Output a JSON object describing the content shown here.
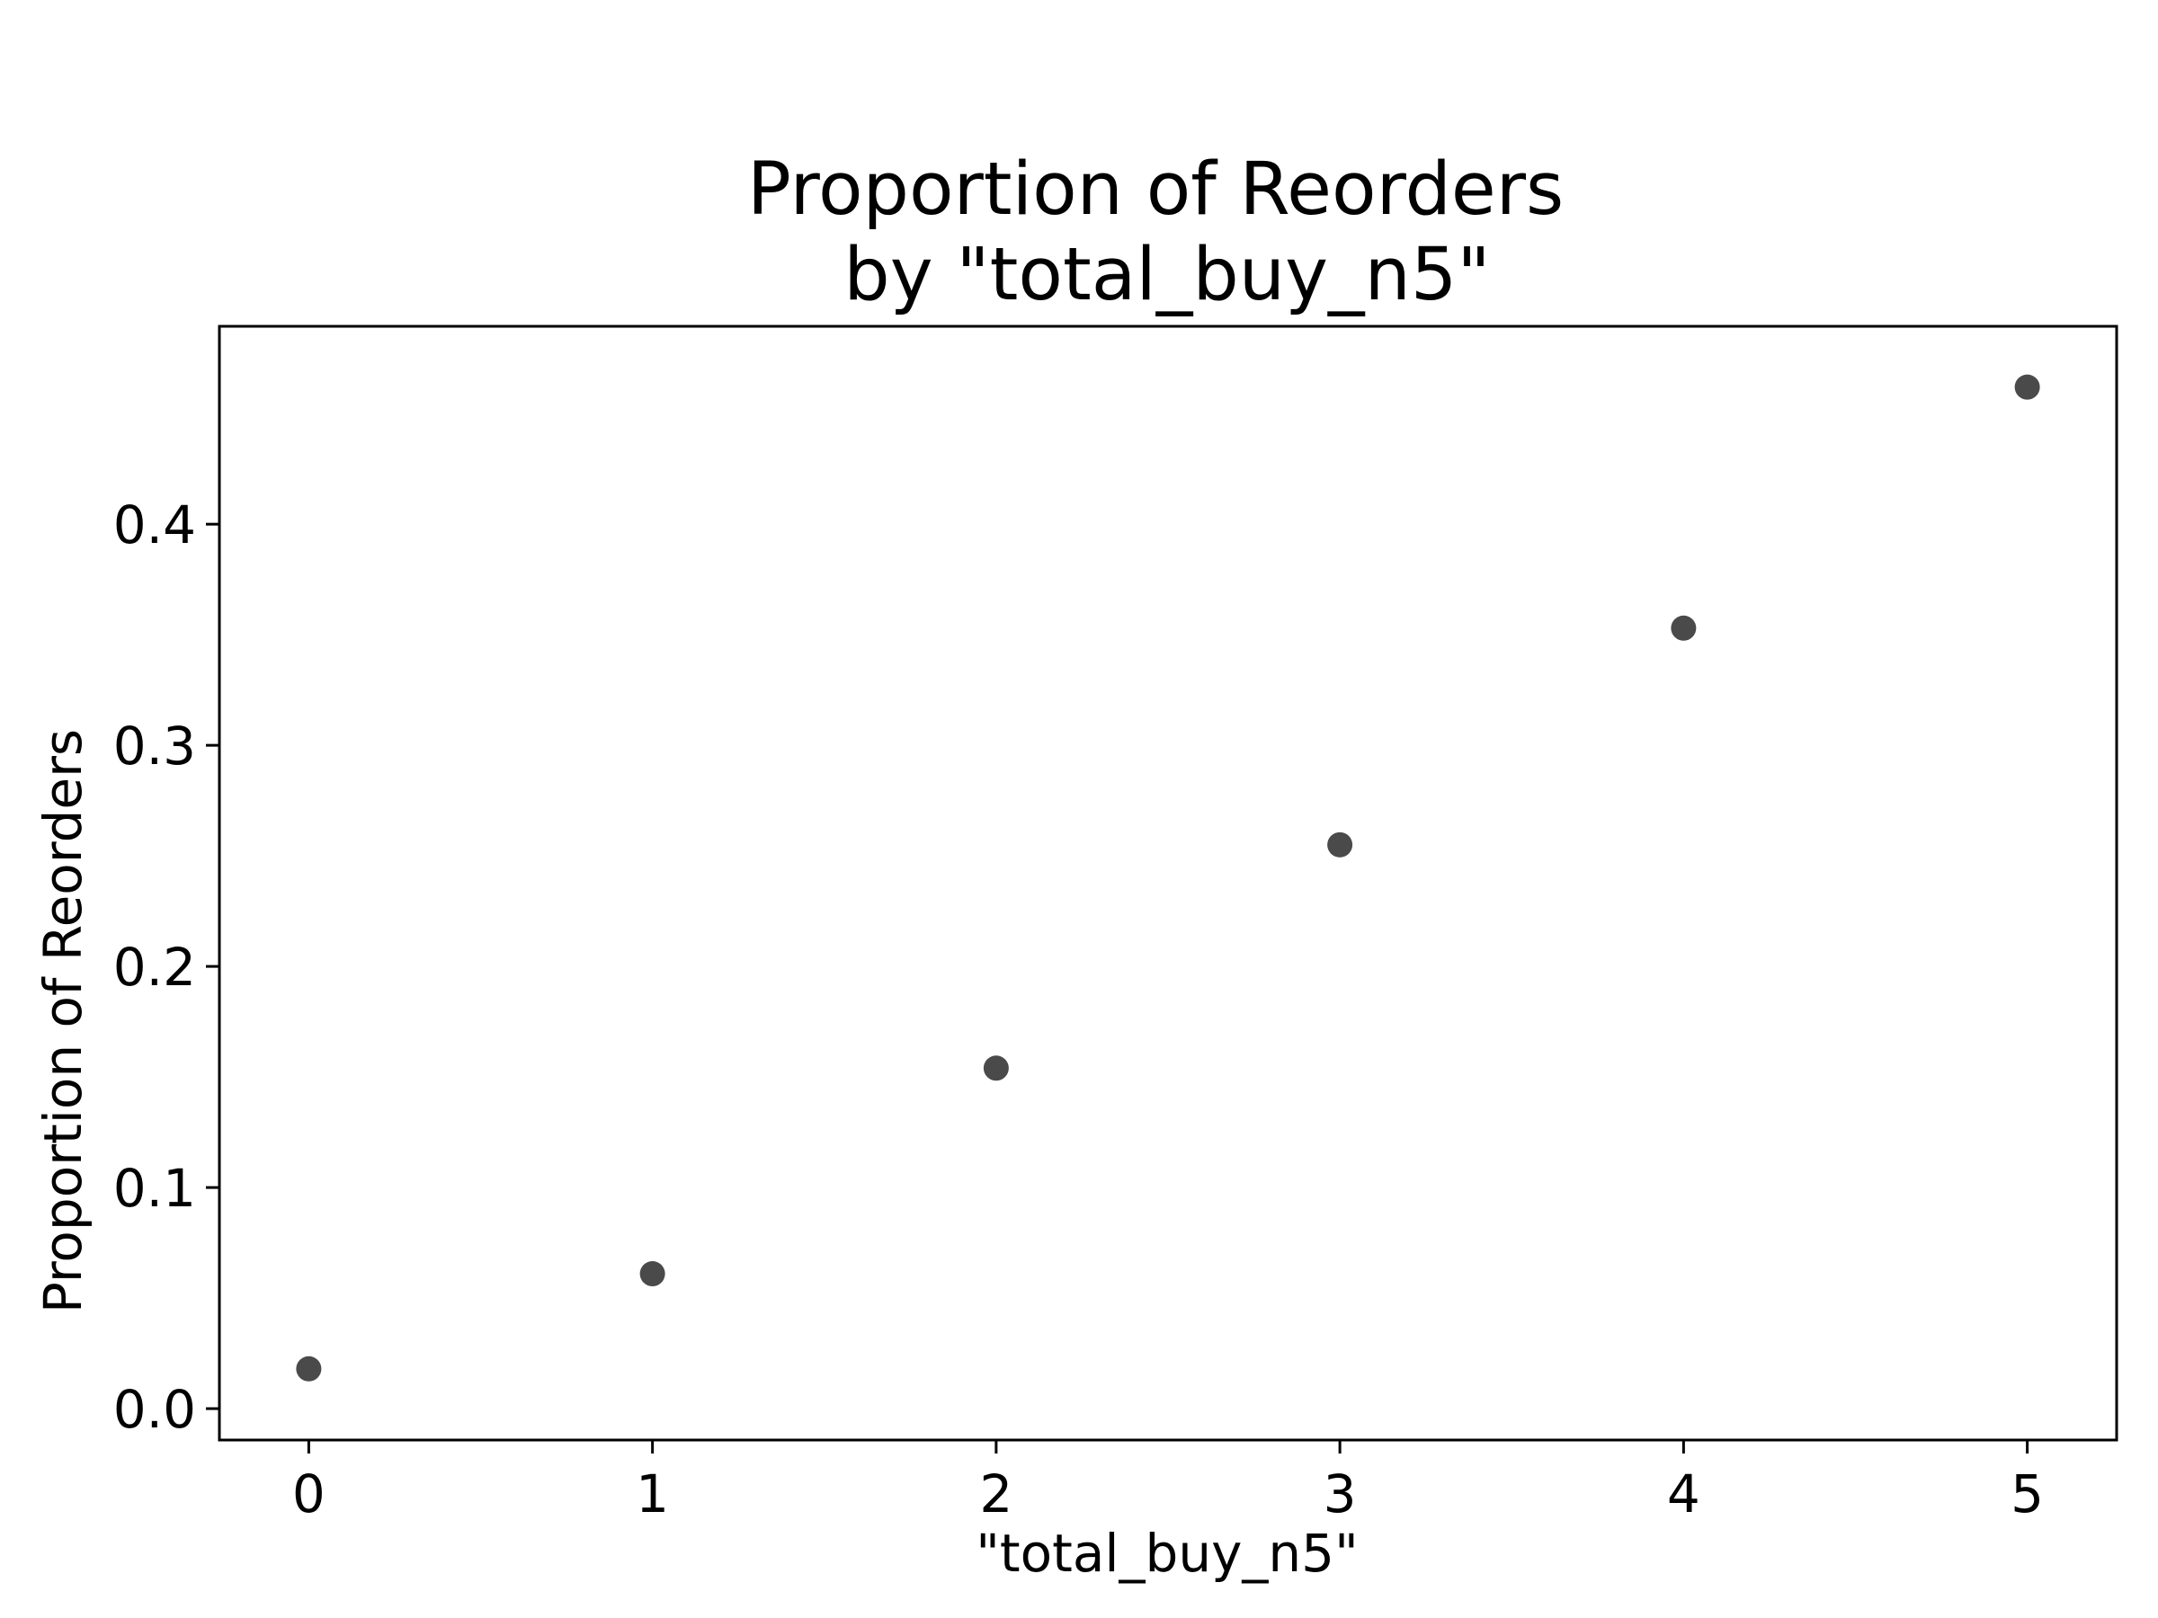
{
  "chart_data": {
    "type": "scatter",
    "title": "Proportion of Reorders\nby \"total_buy_n5\"",
    "xlabel": "\"total_buy_n5\"",
    "ylabel": "Proportion of Reorders",
    "x": [
      0,
      1,
      2,
      3,
      4,
      5
    ],
    "series": [
      {
        "values": [
          0.018,
          0.061,
          0.154,
          0.255,
          0.353,
          0.462
        ]
      }
    ],
    "xlim": [
      -0.26,
      5.26
    ],
    "ylim": [
      -0.0142,
      0.4895
    ],
    "xticks": [
      "0",
      "1",
      "2",
      "3",
      "4",
      "5"
    ],
    "yticks": [
      "0.0",
      "0.1",
      "0.2",
      "0.3",
      "0.4"
    ],
    "grid": false,
    "marker_color": "#4a4a4a"
  }
}
